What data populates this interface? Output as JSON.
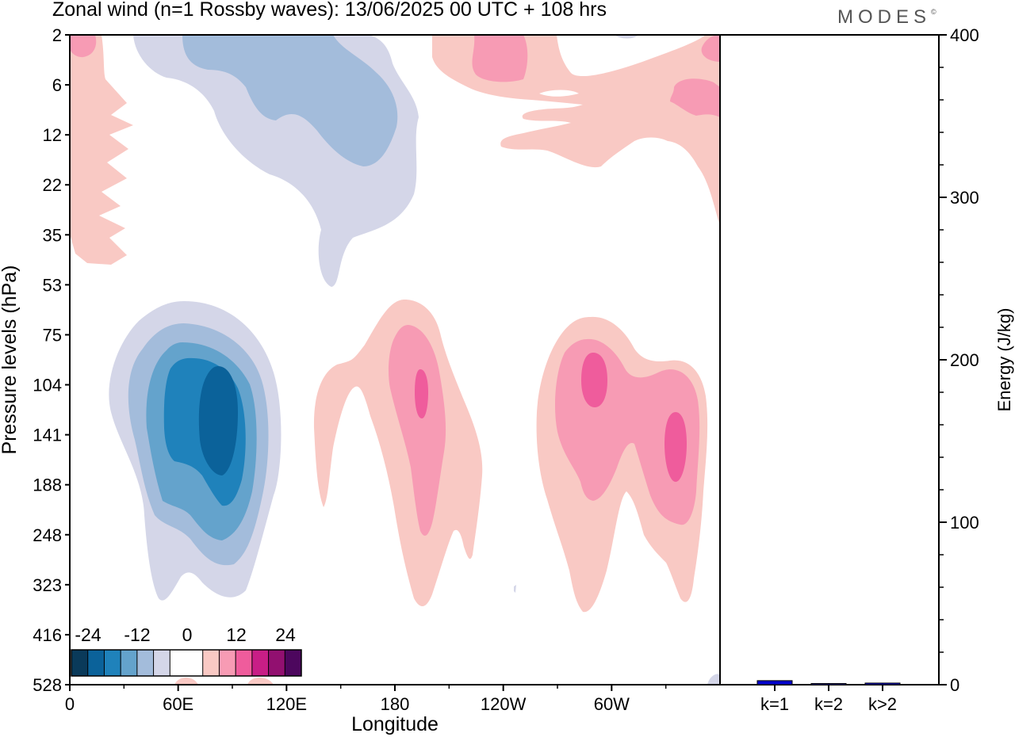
{
  "header": {
    "title": "Zonal wind (n=1 Rossby waves):  13/06/2025  00 UTC  + 108 hrs",
    "brand": "MODES",
    "brand_mark": "©"
  },
  "colors": {
    "neg4": "#0a3a5a",
    "neg3": "#0b629a",
    "neg2": "#1f82bb",
    "neg1": "#64a3cc",
    "neg0b": "#a3bcdb",
    "neg0a": "#d4d6e8",
    "zero": "#ffffff",
    "pos0a": "#f9c9c4",
    "pos0b": "#f79bb4",
    "pos1": "#ef5c9c",
    "pos2": "#c81e86",
    "pos3": "#921070",
    "pos4": "#4d075e",
    "bar": "#0000cc"
  },
  "chart_data": [
    {
      "type": "heatmap",
      "xlabel": "Longitude",
      "ylabel": "Pressure levels (hPa)",
      "x_ticks": [
        "0",
        "60E",
        "120E",
        "180",
        "120W",
        "60W"
      ],
      "x_tick_degrees": [
        0,
        60,
        120,
        180,
        240,
        300
      ],
      "x_range_degrees": [
        0,
        360
      ],
      "y_ticks": [
        "2",
        "6",
        "12",
        "22",
        "35",
        "53",
        "75",
        "104",
        "141",
        "188",
        "248",
        "323",
        "416",
        "528"
      ],
      "colorbar": {
        "ticks": [
          "-24",
          "-12",
          "0",
          "12",
          "24"
        ],
        "levels": [
          -28,
          -24,
          -20,
          -16,
          -12,
          -8,
          -4,
          4,
          8,
          12,
          16,
          20,
          24,
          28
        ]
      },
      "features": [
        {
          "sign": "negative",
          "peak_value": -20,
          "longitude_deg": 78,
          "pressure_hPa": 141
        },
        {
          "sign": "negative",
          "peak_value": -4,
          "longitude_deg": 105,
          "pressure_hPa": 10
        },
        {
          "sign": "positive",
          "peak_value": 12,
          "longitude_deg": 195,
          "pressure_hPa": 104
        },
        {
          "sign": "positive",
          "peak_value": 12,
          "longitude_deg": 290,
          "pressure_hPa": 104
        },
        {
          "sign": "positive",
          "peak_value": 12,
          "longitude_deg": 336,
          "pressure_hPa": 141
        },
        {
          "sign": "positive",
          "peak_value": 8,
          "longitude_deg": 280,
          "pressure_hPa": 4
        },
        {
          "sign": "positive",
          "peak_value": 4,
          "longitude_deg": 10,
          "pressure_hPa": 20
        }
      ]
    },
    {
      "type": "bar",
      "categories": [
        "k=1",
        "k=2",
        "k>2"
      ],
      "values": [
        2.5,
        0.3,
        1.0
      ],
      "ylabel": "Energy (J/kg)",
      "ylim": [
        0,
        400
      ],
      "y_ticks": [
        "0",
        "100",
        "200",
        "300",
        "400"
      ]
    }
  ]
}
